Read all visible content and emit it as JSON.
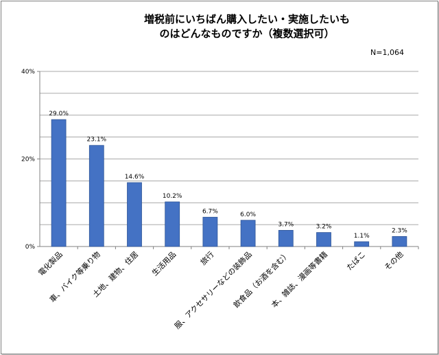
{
  "chart_data": {
    "type": "bar",
    "title_lines": [
      "増税前にいちばん購入したい・実施したいも",
      "のはどんなものですか（複数選択可）"
    ],
    "note": "N=1,064",
    "categories": [
      "電化製品",
      "車、バイク等乗り物",
      "土地、建物、住居",
      "生活用品",
      "旅行",
      "服、アクセサリーなどの装飾品",
      "飲食品（お酒を含む）",
      "本、雑誌、漫画等書籍",
      "たばこ",
      "その他"
    ],
    "values": [
      29.0,
      23.1,
      14.6,
      10.2,
      6.7,
      6.0,
      3.7,
      3.2,
      1.1,
      2.3
    ],
    "value_labels": [
      "29.0%",
      "23.1%",
      "14.6%",
      "10.2%",
      "6.7%",
      "6.0%",
      "3.7%",
      "3.2%",
      "1.1%",
      "2.3%"
    ],
    "y_ticks": [
      0,
      20,
      40
    ],
    "y_tick_labels": [
      "0%",
      "20%",
      "40%"
    ],
    "ylim": [
      0,
      40
    ],
    "gridlines_every": 5,
    "bar_color": "#4472c4",
    "bar_border": "#2f5597",
    "grid": true,
    "legend": "none"
  }
}
